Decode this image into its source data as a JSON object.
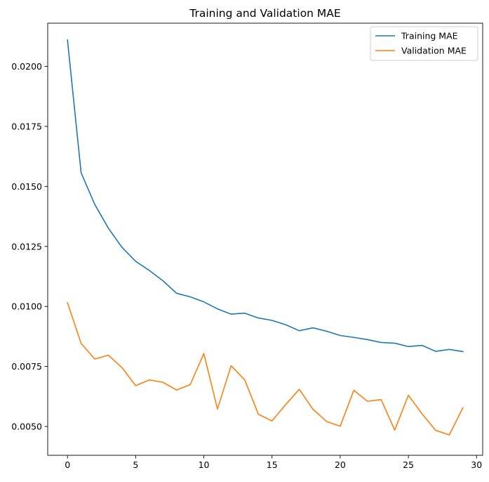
{
  "chart_data": {
    "type": "line",
    "title": "Training and Validation MAE",
    "xlabel": "",
    "ylabel": "",
    "xlim": [
      -1.45,
      30.45
    ],
    "ylim": [
      0.0038,
      0.0218
    ],
    "xticks": [
      0,
      5,
      10,
      15,
      20,
      25,
      30
    ],
    "yticks": [
      0.005,
      0.0075,
      0.01,
      0.0125,
      0.015,
      0.0175,
      0.02
    ],
    "xtick_labels": [
      "0",
      "5",
      "10",
      "15",
      "20",
      "25",
      "30"
    ],
    "ytick_labels": [
      "0.0050",
      "0.0075",
      "0.0100",
      "0.0125",
      "0.0150",
      "0.0175",
      "0.0200"
    ],
    "grid": false,
    "legend_position": "top-right",
    "x": [
      0,
      1,
      2,
      3,
      4,
      5,
      6,
      7,
      8,
      9,
      10,
      11,
      12,
      13,
      14,
      15,
      16,
      17,
      18,
      19,
      20,
      21,
      22,
      23,
      24,
      25,
      26,
      27,
      28,
      29
    ],
    "series": [
      {
        "name": "Training MAE",
        "color": "#1f77b4",
        "values": [
          0.0211,
          0.01557,
          0.01425,
          0.01326,
          0.01246,
          0.01188,
          0.0115,
          0.01107,
          0.01055,
          0.0104,
          0.01019,
          0.0099,
          0.00968,
          0.00972,
          0.00952,
          0.00942,
          0.00924,
          0.00899,
          0.00911,
          0.00897,
          0.00879,
          0.00871,
          0.00862,
          0.0085,
          0.00847,
          0.00833,
          0.00838,
          0.00813,
          0.00821,
          0.00812
        ]
      },
      {
        "name": "Validation MAE",
        "color": "#ff7f0e",
        "values": [
          0.01016,
          0.00846,
          0.00781,
          0.00797,
          0.00745,
          0.0067,
          0.00694,
          0.00684,
          0.00652,
          0.00674,
          0.00804,
          0.00573,
          0.00753,
          0.00694,
          0.00551,
          0.00523,
          0.00591,
          0.00655,
          0.00572,
          0.00521,
          0.00501,
          0.00651,
          0.00605,
          0.00612,
          0.00485,
          0.0063,
          0.00553,
          0.00484,
          0.00465,
          0.00578
        ]
      }
    ]
  }
}
